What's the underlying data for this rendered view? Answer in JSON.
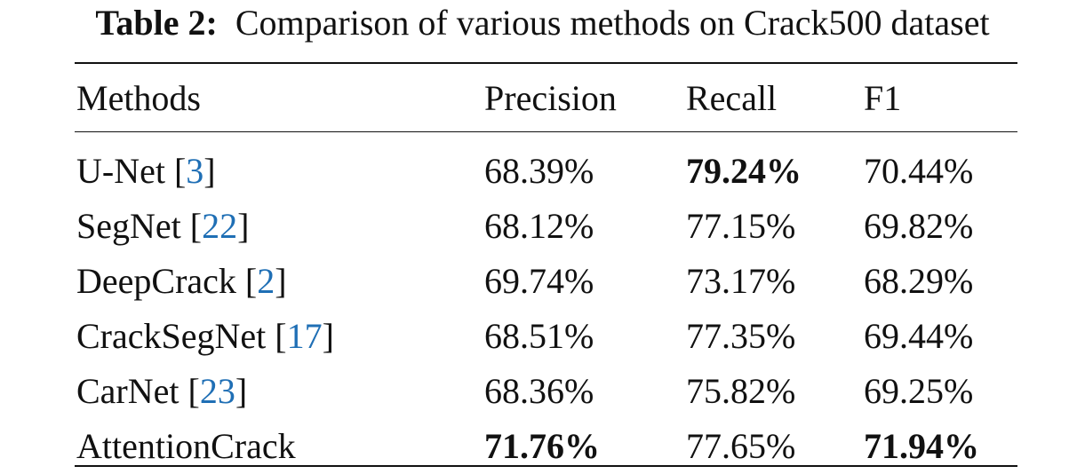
{
  "caption": {
    "label": "Table 2:",
    "text": "Comparison of various methods on Crack500 dataset"
  },
  "table": {
    "headers": [
      "Methods",
      "Precision",
      "Recall",
      "F1"
    ],
    "rows": [
      {
        "method": "U-Net",
        "ref": "3",
        "precision": "68.39%",
        "recall": "79.24%",
        "f1": "70.44%",
        "bold": [
          "recall"
        ]
      },
      {
        "method": "SegNet",
        "ref": "22",
        "precision": "68.12%",
        "recall": "77.15%",
        "f1": "69.82%",
        "bold": []
      },
      {
        "method": "DeepCrack",
        "ref": "2",
        "precision": "69.74%",
        "recall": "73.17%",
        "f1": "68.29%",
        "bold": []
      },
      {
        "method": "CrackSegNet",
        "ref": "17",
        "precision": "68.51%",
        "recall": "77.35%",
        "f1": "69.44%",
        "bold": []
      },
      {
        "method": "CarNet",
        "ref": "23",
        "precision": "68.36%",
        "recall": "75.82%",
        "f1": "69.25%",
        "bold": []
      },
      {
        "method": "AttentionCrack",
        "ref": "",
        "precision": "71.76%",
        "recall": "77.65%",
        "f1": "71.94%",
        "bold": [
          "precision",
          "f1"
        ]
      }
    ]
  },
  "colors": {
    "text": "#111111",
    "reference_link": "#1f6fb5"
  }
}
